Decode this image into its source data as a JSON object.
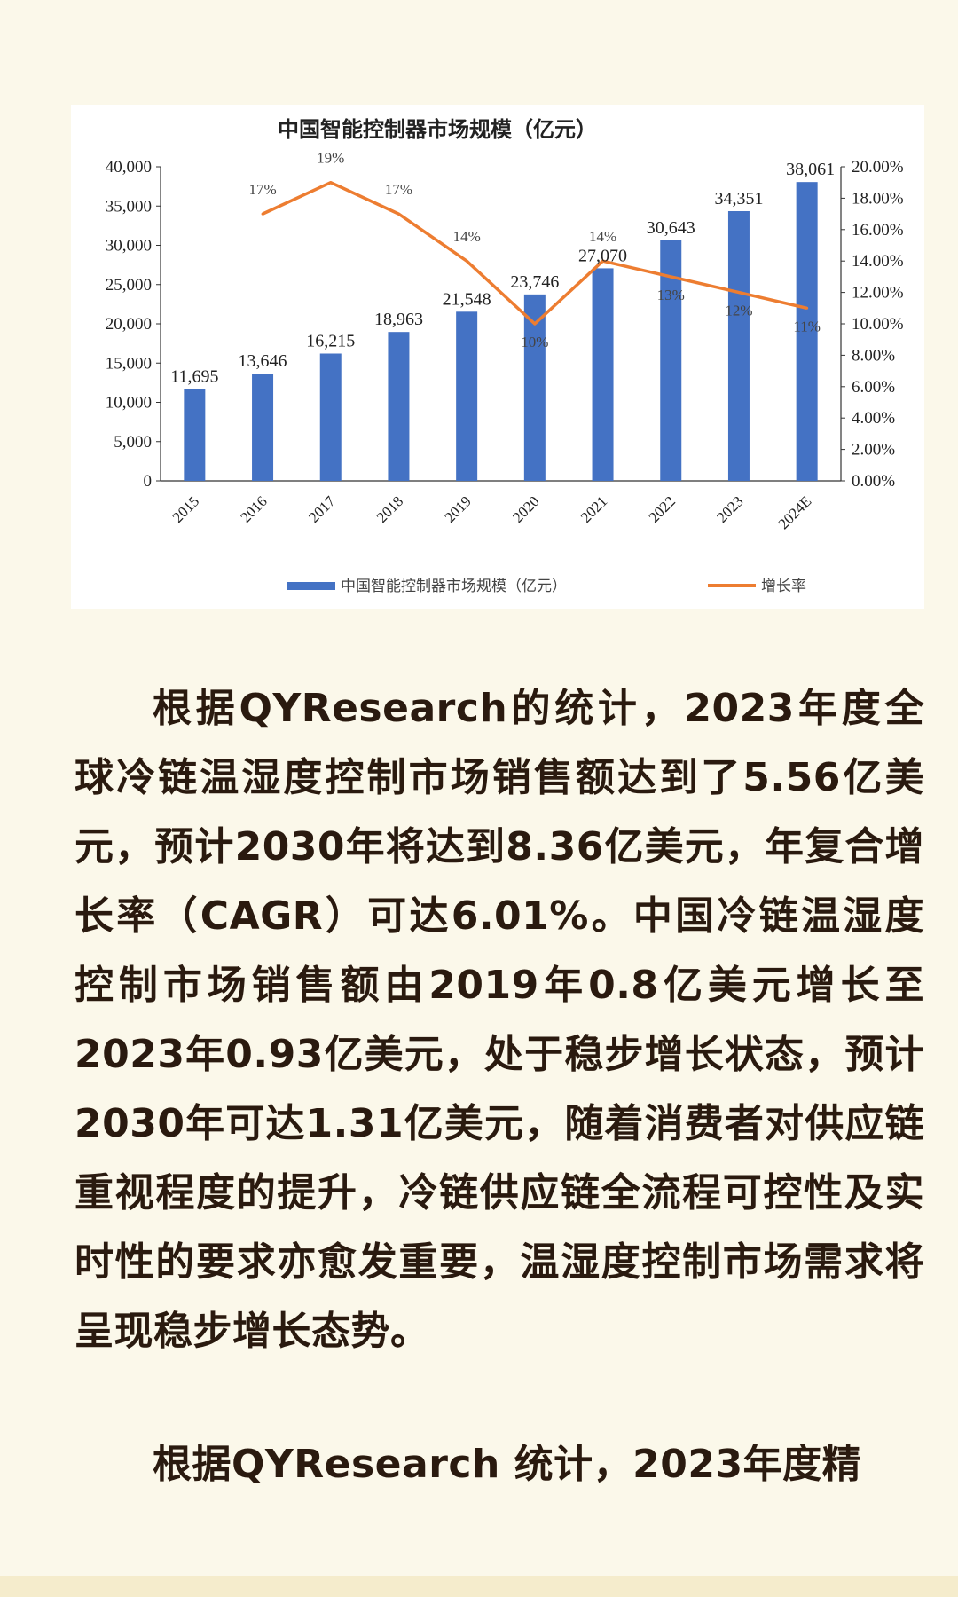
{
  "chart_data": {
    "type": "bar",
    "title": "中国智能控制器市场规模（亿元）",
    "categories": [
      "2015",
      "2016",
      "2017",
      "2018",
      "2019",
      "2020",
      "2021",
      "2022",
      "2023",
      "2024E"
    ],
    "series": [
      {
        "name": "中国智能控制器市场规模（亿元）",
        "type": "bar",
        "axis": "left",
        "color": "#4472c4",
        "values": [
          11695,
          13646,
          16215,
          18963,
          21548,
          23746,
          27070,
          30643,
          34351,
          38061
        ],
        "labels": [
          "11,695",
          "13,646",
          "16,215",
          "18,963",
          "21,548",
          "23,746",
          "27,070",
          "30,643",
          "34,351",
          "38,061"
        ]
      },
      {
        "name": "增长率",
        "type": "line",
        "axis": "right",
        "color": "#ed7d31",
        "values": [
          null,
          17,
          19,
          17,
          14,
          10,
          14,
          13,
          12,
          11
        ],
        "labels": [
          "",
          "17%",
          "19%",
          "17%",
          "14%",
          "10%",
          "14%",
          "13%",
          "12%",
          "11%"
        ]
      }
    ],
    "ylim_left": [
      0,
      40000
    ],
    "ylim_right": [
      0,
      20
    ],
    "left_ticks": [
      "0",
      "5,000",
      "10,000",
      "15,000",
      "20,000",
      "25,000",
      "30,000",
      "35,000",
      "40,000"
    ],
    "right_ticks": [
      "0.00%",
      "2.00%",
      "4.00%",
      "6.00%",
      "8.00%",
      "10.00%",
      "12.00%",
      "14.00%",
      "16.00%",
      "18.00%",
      "20.00%"
    ],
    "legend_position": "bottom",
    "grid": false
  },
  "article": {
    "paragraph_1": "根据QYResearch的统计，2023年度全球冷链温湿度控制市场销售额达到了5.56亿美元，预计2030年将达到8.36亿美元，年复合增长率（CAGR）可达6.01%。中国冷链温湿度控制市场销售额由2019年0.8亿美元增长至2023年0.93亿美元，处于稳步增长状态，预计2030年可达1.31亿美元，随着消费者对供应链重视程度的提升，冷链供应链全流程可控性及实时性的要求亦愈发重要，温湿度控制市场需求将呈现稳步增长态势。",
    "paragraph_2": "根据QYResearch 统计，2023年度精"
  }
}
